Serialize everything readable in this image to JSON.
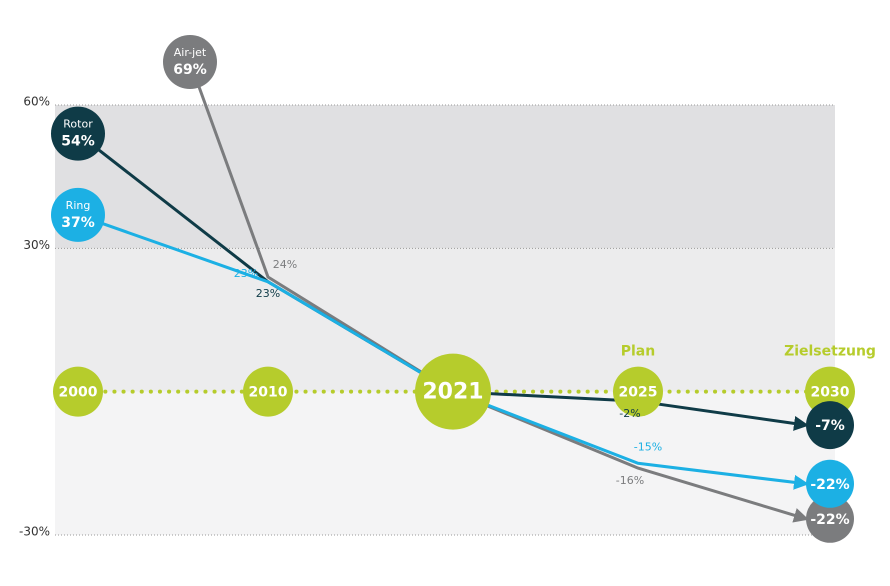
{
  "chart_data": {
    "type": "line",
    "categories": [
      "2000",
      "2010",
      "2021",
      "2025",
      "2030"
    ],
    "series": [
      {
        "name": "Air-jet",
        "color": "#7b7c7e",
        "values": [
          69,
          24,
          0,
          -16,
          -22
        ],
        "value_labels": [
          "69%",
          "24%",
          null,
          "-16%",
          "-22%"
        ]
      },
      {
        "name": "Rotor",
        "color": "#0f3b47",
        "values": [
          54,
          23,
          0,
          -2,
          -7
        ],
        "value_labels": [
          "54%",
          "23%",
          null,
          "-2%",
          "-7%"
        ]
      },
      {
        "name": "Ring",
        "color": "#1cb0e4",
        "values": [
          37,
          23,
          0,
          -15,
          -22
        ],
        "value_labels": [
          "37%",
          "23%",
          null,
          "-15%",
          "-22%"
        ]
      }
    ],
    "annotations": [
      {
        "text": "Plan",
        "category": 3
      },
      {
        "text": "Zielsetzung",
        "category": 4
      }
    ],
    "ylim": [
      -30,
      60
    ],
    "yticks": [
      {
        "value": 60,
        "label": "60%"
      },
      {
        "value": 30,
        "label": "30%"
      },
      {
        "value": -30,
        "label": "-30%"
      }
    ],
    "timeline_color": "#b6cc2c"
  }
}
